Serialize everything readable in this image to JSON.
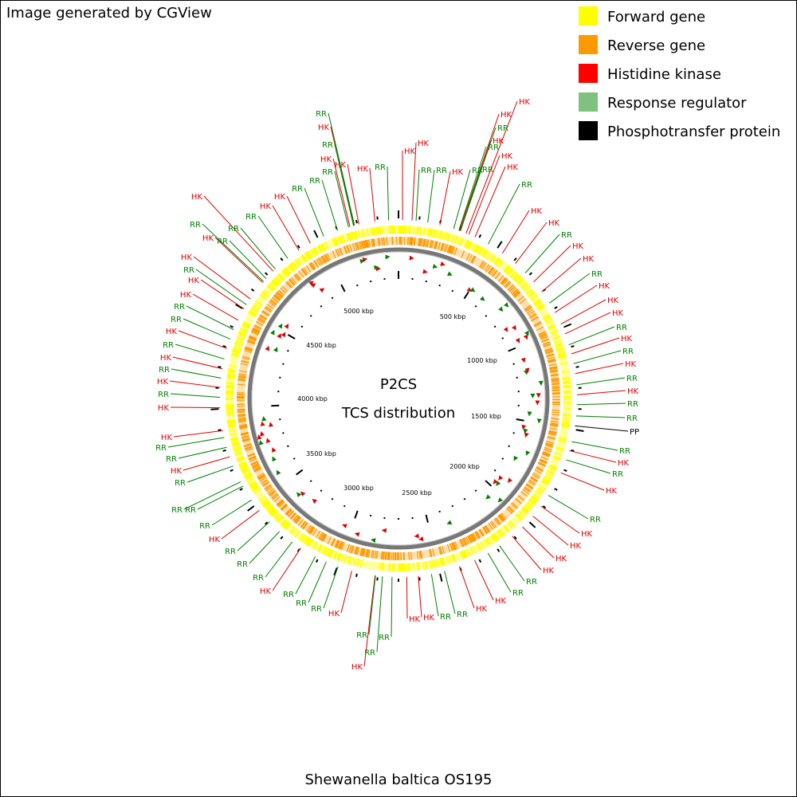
{
  "header": {
    "credit": "Image generated by CGView"
  },
  "legend": [
    {
      "label": "Forward gene",
      "color": "#ffff00"
    },
    {
      "label": "Reverse gene",
      "color": "#ff9900"
    },
    {
      "label": "Histidine kinase",
      "color": "#ff0000"
    },
    {
      "label": "Response regulator",
      "color": "#80c080"
    },
    {
      "label": "Phosphotransfer protein",
      "color": "#000000"
    }
  ],
  "center": {
    "title": "P2CS",
    "subtitle": "TCS distribution"
  },
  "footer": {
    "organism": "Shewanella baltica OS195"
  },
  "scale_labels": [
    "500 kbp",
    "1000 kbp",
    "1500 kbp",
    "2000 kbp",
    "2500 kbp",
    "3000 kbp",
    "3500 kbp",
    "4000 kbp",
    "4500 kbp",
    "5000 kbp"
  ],
  "annotation_groups": [
    {
      "color": "#e00000",
      "labels": [
        "HK",
        "HK",
        "HK",
        "HK",
        "HK",
        "HK",
        "HK",
        "HK",
        "HK",
        "HK",
        "HK",
        "HK",
        "HK",
        "HK",
        "HK",
        "HK",
        "HK",
        "HK",
        "HK",
        "HK",
        "HK",
        "HK",
        "HK",
        "HK",
        "HK",
        "HK",
        "HK",
        "HK",
        "HK",
        "HK",
        "HK",
        "HK",
        "HK",
        "HK",
        "HK",
        "HK",
        "HK",
        "HK",
        "HK",
        "HK",
        "HK",
        "HK",
        "HK",
        "HK",
        "HK",
        "HK",
        "HK",
        "HK",
        "HK"
      ]
    },
    {
      "color": "#008000",
      "labels": [
        "RR",
        "RR",
        "RR",
        "RR",
        "RR",
        "RR",
        "RR",
        "RR",
        "RR",
        "RR",
        "RR",
        "RR",
        "RR",
        "RR",
        "RR",
        "RR",
        "RR",
        "RR",
        "RR",
        "RR",
        "RR",
        "RR",
        "RR",
        "RR",
        "RR",
        "RR",
        "RR",
        "RR",
        "RR",
        "RR",
        "RR",
        "RR",
        "RR",
        "RR",
        "RR",
        "RR",
        "RR",
        "RR",
        "RR",
        "RR",
        "RR",
        "RR",
        "RR",
        "RR",
        "RR",
        "RR",
        "RR",
        "RR",
        "RR",
        "RR",
        "RR",
        "RR"
      ]
    },
    {
      "color": "#000000",
      "labels": [
        "PP"
      ]
    }
  ]
}
